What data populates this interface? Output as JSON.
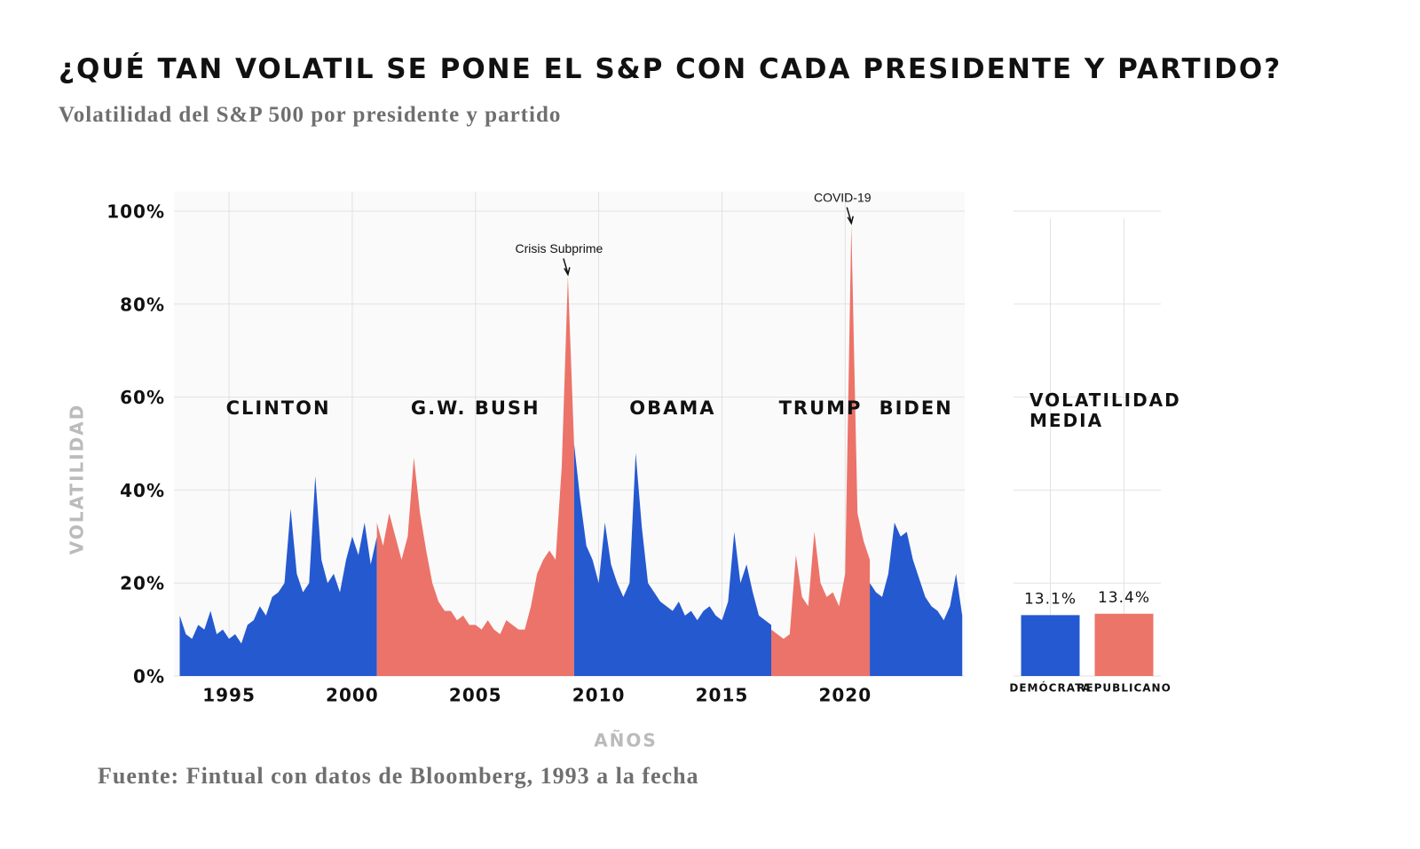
{
  "header": {
    "title": "¿QUÉ TAN VOLATIL SE PONE EL S&P CON CADA PRESIDENTE Y PARTIDO?",
    "subtitle": "Volatilidad del S&P 500 por presidente y partido"
  },
  "footer": {
    "source": "Fuente: Fintual con datos de Bloomberg, 1993 a la fecha"
  },
  "chart_data": [
    {
      "type": "area",
      "x_label": "AÑOS",
      "y_label": "VOLATILIDAD",
      "xlim": [
        1993,
        2024.85
      ],
      "xticks": [
        1995,
        2000,
        2005,
        2010,
        2015,
        2020
      ],
      "ylim": [
        0,
        100
      ],
      "yticks": [
        {
          "value": 0,
          "label": "0%"
        },
        {
          "value": 20,
          "label": "20%"
        },
        {
          "value": 40,
          "label": "40%"
        },
        {
          "value": 60,
          "label": "60%"
        },
        {
          "value": 80,
          "label": "80%"
        },
        {
          "value": 100,
          "label": "100%"
        }
      ],
      "grid": true,
      "series": [
        {
          "name": "CLINTON",
          "color": "#2559d0",
          "x": [
            1993,
            1993.25,
            1993.5,
            1993.75,
            1994,
            1994.25,
            1994.5,
            1994.75,
            1995,
            1995.25,
            1995.5,
            1995.75,
            1996,
            1996.25,
            1996.5,
            1996.75,
            1997,
            1997.25,
            1997.5,
            1997.75,
            1998,
            1998.25,
            1998.5,
            1998.75,
            1999,
            1999.25,
            1999.5,
            1999.75,
            2000,
            2000.25,
            2000.5,
            2000.75,
            2001
          ],
          "values": [
            13,
            9,
            8,
            11,
            10,
            14,
            9,
            10,
            8,
            9,
            7,
            11,
            12,
            15,
            13,
            17,
            18,
            20,
            36,
            22,
            18,
            20,
            43,
            25,
            20,
            22,
            18,
            25,
            30,
            26,
            33,
            24,
            30
          ]
        },
        {
          "name": "G.W. BUSH",
          "color": "#ec7369",
          "x": [
            2001,
            2001.25,
            2001.5,
            2001.75,
            2002,
            2002.25,
            2002.5,
            2002.75,
            2003,
            2003.25,
            2003.5,
            2003.75,
            2004,
            2004.25,
            2004.5,
            2004.75,
            2005,
            2005.25,
            2005.5,
            2005.75,
            2006,
            2006.25,
            2006.5,
            2006.75,
            2007,
            2007.25,
            2007.5,
            2007.75,
            2008,
            2008.25,
            2008.5,
            2008.75,
            2009
          ],
          "values": [
            33,
            28,
            35,
            30,
            25,
            30,
            47,
            35,
            27,
            20,
            16,
            14,
            14,
            12,
            13,
            11,
            11,
            10,
            12,
            10,
            9,
            12,
            11,
            10,
            10,
            15,
            22,
            25,
            27,
            25,
            45,
            86,
            50
          ]
        },
        {
          "name": "OBAMA",
          "color": "#2559d0",
          "x": [
            2009,
            2009.25,
            2009.5,
            2009.75,
            2010,
            2010.25,
            2010.5,
            2010.75,
            2011,
            2011.25,
            2011.5,
            2011.75,
            2012,
            2012.25,
            2012.5,
            2012.75,
            2013,
            2013.25,
            2013.5,
            2013.75,
            2014,
            2014.25,
            2014.5,
            2014.75,
            2015,
            2015.25,
            2015.5,
            2015.75,
            2016,
            2016.25,
            2016.5,
            2016.75,
            2017
          ],
          "values": [
            50,
            38,
            28,
            25,
            20,
            33,
            24,
            20,
            17,
            20,
            48,
            32,
            20,
            18,
            16,
            15,
            14,
            16,
            13,
            14,
            12,
            14,
            15,
            13,
            12,
            16,
            31,
            20,
            24,
            18,
            13,
            12,
            11
          ]
        },
        {
          "name": "TRUMP",
          "color": "#ec7369",
          "x": [
            2017,
            2017.25,
            2017.5,
            2017.75,
            2018,
            2018.25,
            2018.5,
            2018.75,
            2019,
            2019.25,
            2019.5,
            2019.75,
            2020,
            2020.25,
            2020.5,
            2020.75,
            2021
          ],
          "values": [
            10,
            9,
            8,
            9,
            26,
            17,
            15,
            31,
            20,
            17,
            18,
            15,
            22,
            97,
            35,
            29,
            25
          ]
        },
        {
          "name": "BIDEN",
          "color": "#2559d0",
          "x": [
            2021,
            2021.25,
            2021.5,
            2021.75,
            2022,
            2022.25,
            2022.5,
            2022.75,
            2023,
            2023.25,
            2023.5,
            2023.75,
            2024,
            2024.25,
            2024.5,
            2024.75
          ],
          "values": [
            20,
            18,
            17,
            22,
            33,
            30,
            31,
            25,
            21,
            17,
            15,
            14,
            12,
            15,
            22,
            13
          ]
        }
      ],
      "annotations": [
        {
          "text": "Crisis Subprime",
          "x": 2008.75,
          "y": 86
        },
        {
          "text": "COVID-19",
          "x": 2020.25,
          "y": 97
        }
      ]
    },
    {
      "type": "bar",
      "title": "VOLATILIDAD MEDIA",
      "categories": [
        "DEMÓCRATA",
        "REPUBLICANO"
      ],
      "colors": [
        "#2459d1",
        "#ec7569"
      ],
      "values": [
        13.1,
        13.4
      ],
      "value_labels": [
        "13.1%",
        "13.4%"
      ],
      "ylim": [
        0,
        100
      ],
      "grid": true
    }
  ]
}
